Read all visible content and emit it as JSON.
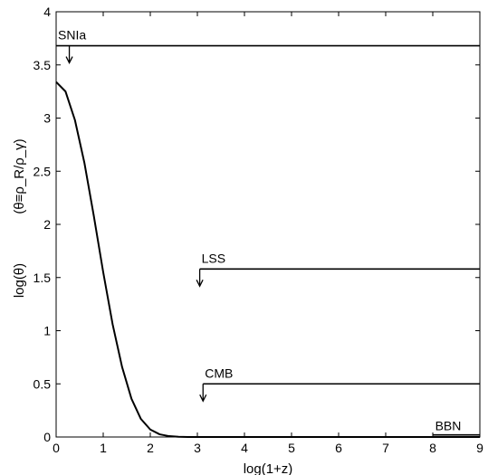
{
  "chart_data": {
    "type": "line",
    "title": "",
    "xlabel": "log(1+z)",
    "ylabel": "log(θ)",
    "ylabel_secondary": "(θ≡ρ_R/ρ_γ)",
    "xlim": [
      0,
      9
    ],
    "ylim": [
      0,
      4
    ],
    "xticks": [
      "0",
      "1",
      "2",
      "3",
      "4",
      "5",
      "6",
      "7",
      "8",
      "9"
    ],
    "yticks": [
      "0",
      "0.5",
      "1",
      "1.5",
      "2",
      "2.5",
      "3",
      "3.5",
      "4"
    ],
    "grid": false,
    "series": [
      {
        "x": [
          0,
          0.2,
          0.4,
          0.6,
          0.8,
          1.0,
          1.2,
          1.4,
          1.6,
          1.8,
          2.0,
          2.2,
          2.4,
          2.6,
          2.8,
          3.0,
          4,
          5,
          6,
          7,
          8,
          9
        ],
        "y": [
          3.34,
          3.25,
          2.98,
          2.58,
          2.08,
          1.55,
          1.06,
          0.66,
          0.36,
          0.17,
          0.07,
          0.025,
          0.008,
          0.002,
          0.0005,
          0,
          0,
          0,
          0,
          0,
          0,
          0
        ]
      }
    ],
    "annotations": [
      {
        "label": "SNIa",
        "x_start": 0,
        "x_end": 9,
        "y": 3.68,
        "arrow_x": 0.28
      },
      {
        "label": "LSS",
        "x_start": 3.05,
        "x_end": 9,
        "y": 1.58,
        "arrow_x": 3.05
      },
      {
        "label": "CMB",
        "x_start": 3.12,
        "x_end": 9,
        "y": 0.5,
        "arrow_x": 3.12
      },
      {
        "label": "BBN",
        "x_start": 8.0,
        "x_end": 9,
        "y": 0.02,
        "arrow_x": null
      }
    ]
  }
}
